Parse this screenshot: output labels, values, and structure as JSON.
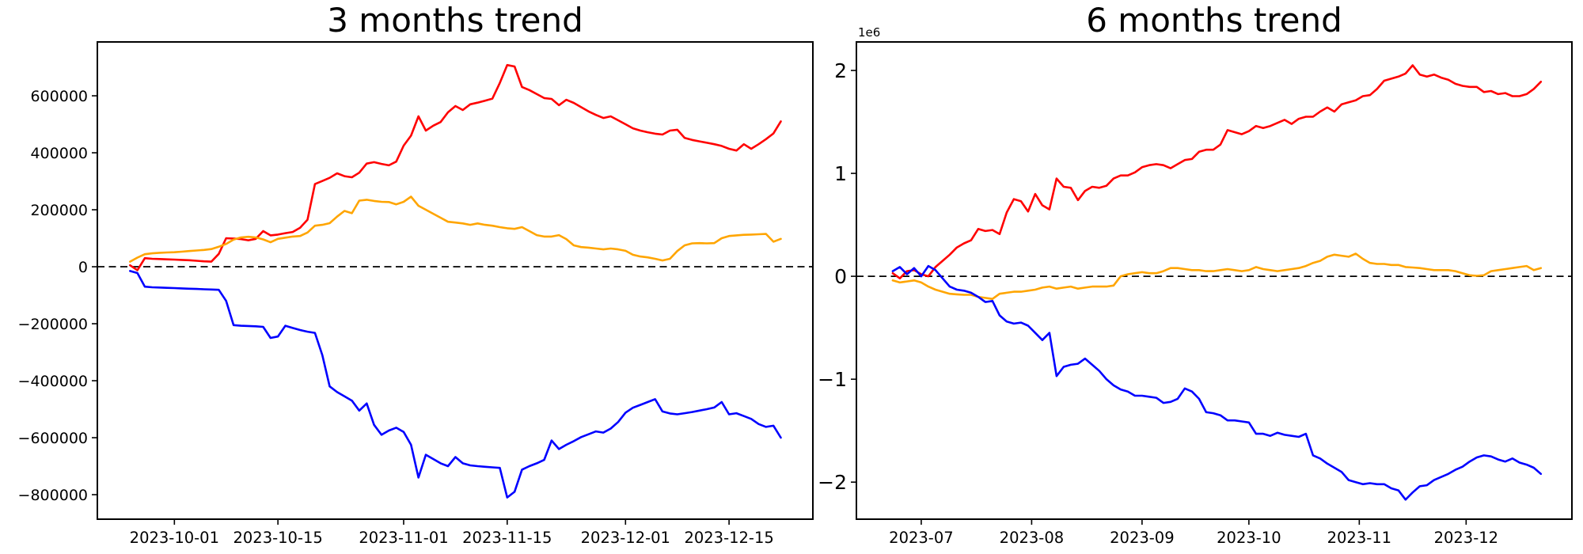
{
  "figure": {
    "background": "#ffffff"
  },
  "colors": {
    "red": "#ff0000",
    "orange": "#ffa500",
    "blue": "#0000ff",
    "axis": "#000000"
  },
  "chart_data": [
    {
      "type": "line",
      "title": "3 months trend",
      "xlabel": "",
      "ylabel": "",
      "grid": false,
      "legend": "none",
      "zero_line": {
        "style": "dashed",
        "color": "#000000"
      },
      "xlim": [
        "2023-09-20T14:00:00",
        "2023-12-26T08:00:00"
      ],
      "ylim": [
        -886000,
        789000
      ],
      "y_ticks": [
        {
          "value": 600000,
          "label": "600000"
        },
        {
          "value": 400000,
          "label": "400000"
        },
        {
          "value": 200000,
          "label": "200000"
        },
        {
          "value": 0,
          "label": "0"
        },
        {
          "value": -200000,
          "label": "−200000"
        },
        {
          "value": -400000,
          "label": "−400000"
        },
        {
          "value": -600000,
          "label": "−600000"
        },
        {
          "value": -800000,
          "label": "−800000"
        }
      ],
      "x_ticks": [
        {
          "date": "2023-10-01",
          "label": "2023-10-01"
        },
        {
          "date": "2023-10-15",
          "label": "2023-10-15"
        },
        {
          "date": "2023-11-01",
          "label": "2023-11-01"
        },
        {
          "date": "2023-11-15",
          "label": "2023-11-15"
        },
        {
          "date": "2023-12-01",
          "label": "2023-12-01"
        },
        {
          "date": "2023-12-15",
          "label": "2023-12-15"
        }
      ],
      "series": [
        {
          "name": "red",
          "color": "#ff0000",
          "start": "2023-09-25",
          "step_days": 1,
          "values": [
            5000,
            -12000,
            30000,
            28000,
            27000,
            26000,
            25000,
            24000,
            23000,
            21000,
            19000,
            18000,
            45000,
            100000,
            99000,
            97000,
            93000,
            98000,
            125000,
            110000,
            113000,
            118000,
            122000,
            137000,
            165000,
            290000,
            301000,
            312000,
            328000,
            318000,
            314000,
            330000,
            362000,
            367000,
            361000,
            356000,
            369000,
            425000,
            460000,
            528000,
            478000,
            495000,
            508000,
            542000,
            564000,
            550000,
            570000,
            576000,
            583000,
            590000,
            645000,
            708000,
            703000,
            631000,
            620000,
            606000,
            592000,
            589000,
            567000,
            586000,
            575000,
            560000,
            545000,
            533000,
            522000,
            528000,
            514000,
            500000,
            486000,
            478000,
            472000,
            467000,
            464000,
            478000,
            481000,
            452000,
            445000,
            440000,
            435000,
            430000,
            424000,
            414000,
            408000,
            430000,
            414000,
            430000,
            448000,
            468000,
            510000
          ]
        },
        {
          "name": "orange",
          "color": "#ffa500",
          "start": "2023-09-25",
          "step_days": 1,
          "values": [
            18000,
            32000,
            44000,
            47000,
            49000,
            50000,
            51000,
            53000,
            55000,
            57000,
            59000,
            62000,
            70000,
            80000,
            95000,
            103000,
            105000,
            103000,
            96000,
            86000,
            98000,
            102000,
            106000,
            108000,
            120000,
            144000,
            147000,
            153000,
            176000,
            196000,
            188000,
            232000,
            235000,
            231000,
            228000,
            227000,
            219000,
            228000,
            246000,
            214000,
            200000,
            186000,
            172000,
            158000,
            155000,
            152000,
            147000,
            152000,
            147000,
            144000,
            139000,
            135000,
            133000,
            139000,
            125000,
            111000,
            106000,
            106000,
            111000,
            97000,
            75000,
            69000,
            67000,
            64000,
            61000,
            64000,
            61000,
            56000,
            42000,
            36000,
            33000,
            28000,
            22000,
            28000,
            55000,
            75000,
            82000,
            83000,
            82000,
            83000,
            100000,
            108000,
            110000,
            112000,
            113000,
            114000,
            115000,
            88000,
            98000
          ]
        },
        {
          "name": "blue",
          "color": "#0000ff",
          "start": "2023-09-25",
          "step_days": 1,
          "values": [
            -15000,
            -22000,
            -70000,
            -72000,
            -73000,
            -74000,
            -75000,
            -76000,
            -77000,
            -78000,
            -79000,
            -80000,
            -81000,
            -120000,
            -205000,
            -207000,
            -208000,
            -209000,
            -211000,
            -250000,
            -245000,
            -207000,
            -215000,
            -222000,
            -228000,
            -232000,
            -310000,
            -420000,
            -440000,
            -455000,
            -470000,
            -505000,
            -480000,
            -555000,
            -590000,
            -575000,
            -565000,
            -580000,
            -625000,
            -740000,
            -660000,
            -675000,
            -690000,
            -700000,
            -668000,
            -690000,
            -697000,
            -700000,
            -702000,
            -704000,
            -706000,
            -810000,
            -790000,
            -712000,
            -700000,
            -690000,
            -678000,
            -610000,
            -640000,
            -625000,
            -612000,
            -598000,
            -588000,
            -578000,
            -582000,
            -568000,
            -545000,
            -512000,
            -495000,
            -485000,
            -475000,
            -465000,
            -508000,
            -515000,
            -518000,
            -514000,
            -510000,
            -505000,
            -500000,
            -494000,
            -475000,
            -518000,
            -514000,
            -524000,
            -534000,
            -552000,
            -562000,
            -558000,
            -600000
          ]
        }
      ]
    },
    {
      "type": "line",
      "title": "6 months trend",
      "xlabel": "",
      "ylabel": "",
      "grid": false,
      "legend": "none",
      "offset_text": "1e6",
      "zero_line": {
        "style": "dashed",
        "color": "#000000"
      },
      "xlim": [
        "2023-06-12T19:00:00",
        "2023-12-30T17:00:00"
      ],
      "ylim": [
        -2360000,
        2277000
      ],
      "y_ticks": [
        {
          "value": 2000000,
          "label": "2"
        },
        {
          "value": 1000000,
          "label": "1"
        },
        {
          "value": 0,
          "label": "0"
        },
        {
          "value": -1000000,
          "label": "−1"
        },
        {
          "value": -2000000,
          "label": "−2"
        }
      ],
      "x_ticks": [
        {
          "date": "2023-07-01",
          "label": "2023-07"
        },
        {
          "date": "2023-08-01",
          "label": "2023-08"
        },
        {
          "date": "2023-09-01",
          "label": "2023-09"
        },
        {
          "date": "2023-10-01",
          "label": "2023-10"
        },
        {
          "date": "2023-11-01",
          "label": "2023-11"
        },
        {
          "date": "2023-12-01",
          "label": "2023-12"
        }
      ],
      "series": [
        {
          "name": "red",
          "color": "#ff0000",
          "start": "2023-06-23",
          "step_days": 2,
          "values": [
            30000,
            -20000,
            50000,
            60000,
            20000,
            0,
            90000,
            150000,
            210000,
            280000,
            320000,
            350000,
            460000,
            440000,
            450000,
            410000,
            620000,
            750000,
            730000,
            630000,
            800000,
            690000,
            650000,
            950000,
            870000,
            860000,
            740000,
            830000,
            870000,
            860000,
            880000,
            950000,
            980000,
            980000,
            1010000,
            1060000,
            1080000,
            1090000,
            1080000,
            1050000,
            1090000,
            1130000,
            1140000,
            1210000,
            1230000,
            1230000,
            1280000,
            1420000,
            1400000,
            1380000,
            1410000,
            1460000,
            1440000,
            1460000,
            1490000,
            1520000,
            1480000,
            1530000,
            1550000,
            1550000,
            1600000,
            1640000,
            1600000,
            1670000,
            1690000,
            1710000,
            1750000,
            1760000,
            1820000,
            1900000,
            1920000,
            1940000,
            1970000,
            2050000,
            1960000,
            1940000,
            1960000,
            1930000,
            1910000,
            1870000,
            1850000,
            1840000,
            1840000,
            1790000,
            1800000,
            1770000,
            1780000,
            1750000,
            1750000,
            1770000,
            1820000,
            1890000
          ]
        },
        {
          "name": "orange",
          "color": "#ffa500",
          "start": "2023-06-23",
          "step_days": 2,
          "values": [
            -40000,
            -60000,
            -50000,
            -40000,
            -60000,
            -100000,
            -130000,
            -150000,
            -170000,
            -175000,
            -180000,
            -180000,
            -200000,
            -210000,
            -220000,
            -170000,
            -160000,
            -150000,
            -150000,
            -140000,
            -130000,
            -110000,
            -100000,
            -120000,
            -110000,
            -100000,
            -120000,
            -110000,
            -100000,
            -100000,
            -100000,
            -90000,
            0,
            20000,
            30000,
            40000,
            30000,
            30000,
            50000,
            80000,
            80000,
            70000,
            60000,
            60000,
            50000,
            50000,
            60000,
            70000,
            60000,
            50000,
            60000,
            90000,
            70000,
            60000,
            50000,
            60000,
            70000,
            80000,
            100000,
            130000,
            150000,
            190000,
            210000,
            200000,
            190000,
            220000,
            170000,
            130000,
            120000,
            120000,
            110000,
            110000,
            90000,
            85000,
            80000,
            70000,
            60000,
            60000,
            60000,
            50000,
            30000,
            10000,
            5000,
            10000,
            50000,
            60000,
            70000,
            80000,
            90000,
            100000,
            60000,
            80000
          ]
        },
        {
          "name": "blue",
          "color": "#0000ff",
          "start": "2023-06-23",
          "step_days": 2,
          "values": [
            50000,
            90000,
            20000,
            80000,
            0,
            100000,
            60000,
            -20000,
            -100000,
            -130000,
            -140000,
            -160000,
            -200000,
            -250000,
            -240000,
            -380000,
            -440000,
            -460000,
            -450000,
            -480000,
            -550000,
            -620000,
            -550000,
            -970000,
            -880000,
            -860000,
            -850000,
            -800000,
            -860000,
            -920000,
            -1000000,
            -1060000,
            -1100000,
            -1120000,
            -1160000,
            -1160000,
            -1170000,
            -1180000,
            -1230000,
            -1220000,
            -1190000,
            -1090000,
            -1120000,
            -1190000,
            -1320000,
            -1330000,
            -1350000,
            -1400000,
            -1400000,
            -1410000,
            -1420000,
            -1530000,
            -1530000,
            -1550000,
            -1520000,
            -1540000,
            -1550000,
            -1560000,
            -1530000,
            -1740000,
            -1770000,
            -1820000,
            -1860000,
            -1900000,
            -1980000,
            -2000000,
            -2020000,
            -2010000,
            -2020000,
            -2020000,
            -2060000,
            -2080000,
            -2170000,
            -2100000,
            -2040000,
            -2030000,
            -1980000,
            -1950000,
            -1920000,
            -1880000,
            -1850000,
            -1800000,
            -1760000,
            -1740000,
            -1750000,
            -1780000,
            -1800000,
            -1770000,
            -1810000,
            -1830000,
            -1860000,
            -1920000
          ]
        }
      ]
    }
  ]
}
